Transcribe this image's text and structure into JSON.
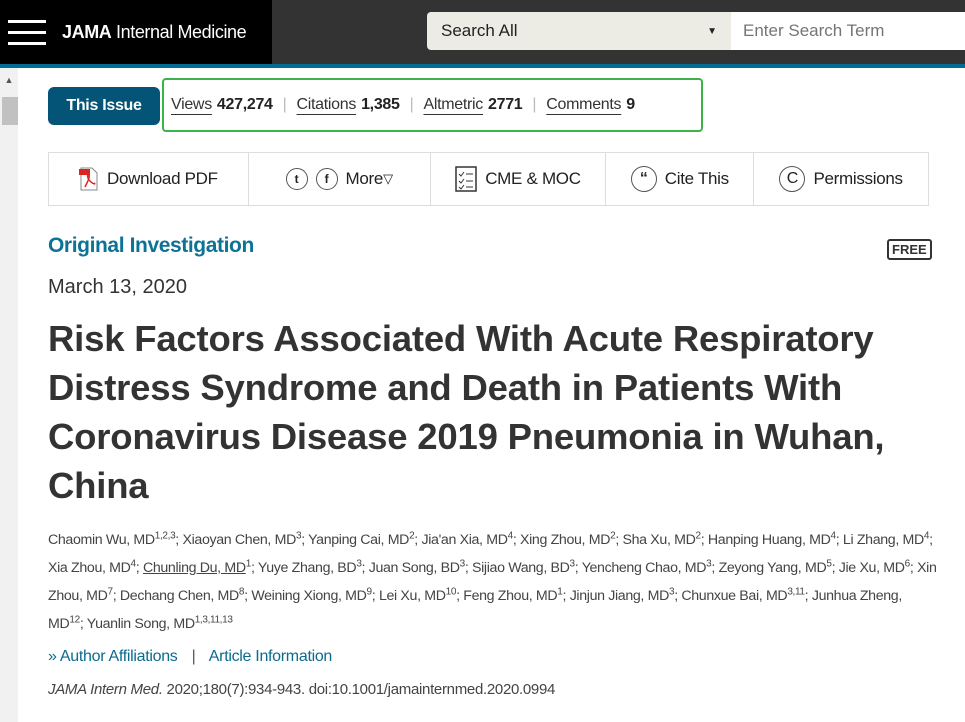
{
  "header": {
    "brand_bold": "JAMA",
    "brand_rest": " Internal Medicine",
    "search_scope": "Search All",
    "search_placeholder": "Enter Search Term"
  },
  "issue_button": "This Issue",
  "metrics": [
    {
      "label": "Views",
      "value": "427,274"
    },
    {
      "label": "Citations",
      "value": "1,385"
    },
    {
      "label": "Altmetric",
      "value": "2771"
    },
    {
      "label": "Comments",
      "value": "9"
    }
  ],
  "toolbar": {
    "download": "Download PDF",
    "more": "More",
    "cme": "CME & MOC",
    "cite": "Cite This",
    "permissions": "Permissions"
  },
  "colors": {
    "accent": "#035476",
    "link": "#0d7396",
    "highlight": "#3bb34a"
  },
  "article": {
    "category": "Original Investigation",
    "badge": "FREE",
    "date": "March 13, 2020",
    "title": "Risk Factors Associated With Acute Respiratory Distress Syndrome and Death in Patients With Coronavirus Disease 2019 Pneumonia in Wuhan, China",
    "authors": [
      {
        "name": "Chaomin Wu, MD",
        "sup": "1,2,3"
      },
      {
        "name": "Xiaoyan Chen, MD",
        "sup": "3"
      },
      {
        "name": "Yanping Cai, MD",
        "sup": "2"
      },
      {
        "name": "Jia'an Xia, MD",
        "sup": "4"
      },
      {
        "name": "Xing Zhou, MD",
        "sup": "2"
      },
      {
        "name": "Sha Xu, MD",
        "sup": "2"
      },
      {
        "name": "Hanping Huang, MD",
        "sup": "4"
      },
      {
        "name": "Li Zhang, MD",
        "sup": "4"
      },
      {
        "name": "Xia Zhou, MD",
        "sup": "4"
      },
      {
        "name": "Chunling Du, MD",
        "sup": "1",
        "link": true
      },
      {
        "name": "Yuye Zhang, BD",
        "sup": "3"
      },
      {
        "name": "Juan Song, BD",
        "sup": "3"
      },
      {
        "name": "Sijiao Wang, BD",
        "sup": "3"
      },
      {
        "name": "Yencheng Chao, MD",
        "sup": "3"
      },
      {
        "name": "Zeyong Yang, MD",
        "sup": "5"
      },
      {
        "name": "Jie Xu, MD",
        "sup": "6"
      },
      {
        "name": "Xin Zhou, MD",
        "sup": "7"
      },
      {
        "name": "Dechang Chen, MD",
        "sup": "8"
      },
      {
        "name": "Weining Xiong, MD",
        "sup": "9"
      },
      {
        "name": "Lei Xu, MD",
        "sup": "10"
      },
      {
        "name": "Feng Zhou, MD",
        "sup": "1"
      },
      {
        "name": "Jinjun Jiang, MD",
        "sup": "3"
      },
      {
        "name": "Chunxue Bai, MD",
        "sup": "3,11"
      },
      {
        "name": "Junhua Zheng, MD",
        "sup": "12"
      },
      {
        "name": "Yuanlin Song, MD",
        "sup": "1,3,11,13"
      }
    ],
    "affiliations": "Author Affiliations",
    "article_info": "Article Information",
    "separator": "|",
    "journal": "JAMA Intern Med.",
    "citation": " 2020;180(7):934-943. doi:10.1001/jamainternmed.2020.0994"
  }
}
